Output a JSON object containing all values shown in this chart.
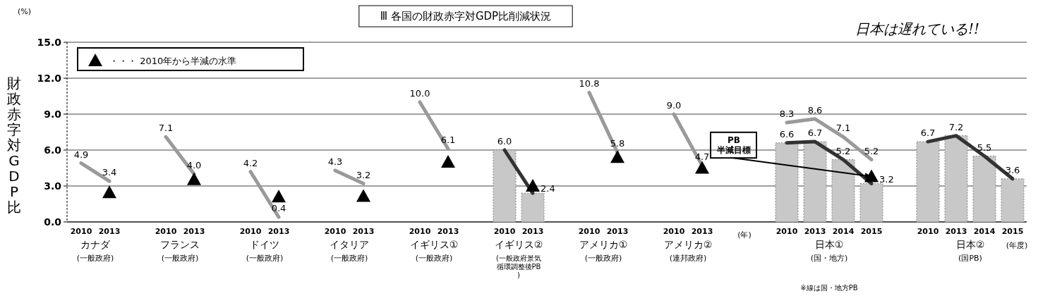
{
  "chart_data": {
    "type": "bar",
    "title": "Ⅲ 各国の財政赤字対GDP比削減状況",
    "ylabel": "財政赤字対GDP比",
    "categories": [
      "2010",
      "2013",
      null,
      "2010",
      "2013",
      null,
      "2010",
      "2013",
      null,
      "2010",
      "2013",
      null,
      "2010",
      "2013",
      null,
      "2010",
      "2013",
      null,
      "2010",
      "2013",
      null,
      "2010",
      "2013",
      null,
      null,
      "2010",
      "2013",
      "2014",
      "2015",
      null,
      "2010",
      "2013",
      "2014",
      "2015"
    ],
    "series": [
      {
        "color": "#c8c8c8",
        "values": [
          null,
          null,
          null,
          null,
          null,
          null,
          null,
          null,
          null,
          null,
          null,
          null,
          null,
          null,
          null,
          6.0,
          2.4,
          null,
          null,
          null,
          null,
          null,
          null,
          null,
          null,
          6.6,
          6.7,
          5.2,
          3.2,
          null,
          6.7,
          7.2,
          5.5,
          3.6
        ],
        "value_labels": [
          null,
          null,
          null,
          null,
          null,
          null,
          null,
          null,
          null,
          null,
          null,
          null,
          null,
          null,
          null,
          "6.0",
          "2.4",
          null,
          null,
          null,
          null,
          null,
          null,
          null,
          null,
          "6.6",
          "6.7",
          "5.2",
          "3.2",
          null,
          "6.7",
          "7.2",
          "5.5",
          "3.6"
        ]
      },
      {
        "type": "line",
        "color": "#9a9a9a",
        "values": [
          4.9,
          3.4,
          null,
          7.1,
          4.0,
          null,
          4.2,
          0.4,
          null,
          4.3,
          3.2,
          null,
          10.0,
          6.1,
          null,
          null,
          null,
          null,
          10.8,
          5.8,
          null,
          9.0,
          4.7,
          null,
          null,
          8.3,
          8.6,
          7.1,
          5.2,
          null,
          null,
          null,
          null,
          null
        ],
        "value_labels": [
          "4.9",
          "3.4",
          null,
          "7.1",
          "4.0",
          null,
          "4.2",
          "0.4",
          null,
          "4.3",
          "3.2",
          null,
          "10.0",
          "6.1",
          null,
          null,
          null,
          null,
          "10.8",
          "5.8",
          null,
          "9.0",
          "4.7",
          null,
          null,
          "8.3",
          "8.6",
          "7.1",
          "5.2",
          null,
          null,
          null,
          null,
          null
        ]
      },
      {
        "type": "line",
        "color": "#333333",
        "values": [
          null,
          null,
          null,
          null,
          null,
          null,
          null,
          null,
          null,
          null,
          null,
          null,
          null,
          null,
          null,
          6.0,
          2.4,
          null,
          null,
          null,
          null,
          null,
          null,
          null,
          null,
          6.6,
          6.7,
          5.2,
          3.2,
          null,
          6.7,
          7.2,
          5.5,
          3.6
        ]
      },
      {
        "type": "scatter",
        "name": "・・・ 2010年から半減の水準",
        "color": "#000000",
        "marker": "triangle",
        "values": [
          null,
          2.45,
          null,
          null,
          3.55,
          null,
          null,
          2.1,
          null,
          null,
          2.15,
          null,
          null,
          5.0,
          null,
          null,
          3.0,
          null,
          null,
          5.4,
          null,
          null,
          4.5,
          null,
          null,
          null,
          null,
          null,
          3.8,
          null,
          null,
          null,
          null,
          null
        ]
      }
    ],
    "ylim": [
      0,
      15
    ],
    "yticks": [
      {
        "value": 0,
        "label": "0.0"
      },
      {
        "value": 3,
        "label": "3.0"
      },
      {
        "value": 6,
        "label": "6.0"
      },
      {
        "value": 9,
        "label": "9.0"
      },
      {
        "value": 12,
        "label": "12.0"
      },
      {
        "value": 15,
        "label": "15.0"
      }
    ],
    "grid": "y",
    "legend": "top left",
    "annotations": [
      "カナダ\n(一般政府)",
      "フランス\n(一般政府)",
      "ドイツ\n(一般政府)",
      "イタリア\n(一般政府)",
      "イギリス①\n(一般政府)",
      "イギリス②\n(一般政府景気循環調整後PB)",
      "アメリカ①\n(一般政府)",
      "アメリカ②\n(連邦政府)",
      "日本①\n(国・地方)",
      "日本②\n(国PB)",
      "(%)",
      "(年)",
      "(年度)",
      "※線は国・地方PB",
      {
        "text": "PB\n半減目標",
        "x": "2015",
        "y": 3.8
      },
      "日本は遅れている!!"
    ]
  }
}
